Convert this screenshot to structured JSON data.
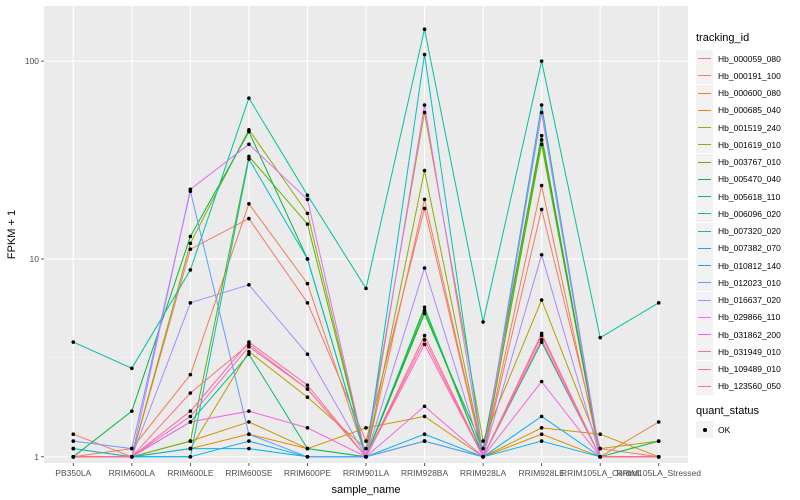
{
  "chart_data": {
    "type": "line",
    "xlabel": "sample_name",
    "ylabel": "FPKM + 1",
    "y_scale": "log10",
    "ylim": [
      0.93,
      190
    ],
    "y_ticks": [
      1,
      10,
      100
    ],
    "y_tick_labels": [
      "1",
      "10",
      "100"
    ],
    "categories": [
      "PB350LA",
      "RRIM600LA",
      "RRIM600LE",
      "RRIM600SE",
      "RRIM600PE",
      "RRIM901LA",
      "RRIM928BA",
      "RRIM928LA",
      "RRIM928LE",
      "RRIM105LA_Control",
      "RRIM105LA_Stressed"
    ],
    "series": [
      {
        "name": "Hb_000059_080",
        "color": "#F8766D",
        "values": [
          1.3,
          1.0,
          11.2,
          16.0,
          6.0,
          1.2,
          18.0,
          1.0,
          17.8,
          1.1,
          1.0
        ]
      },
      {
        "name": "Hb_000191_100",
        "color": "#F07E4E",
        "values": [
          1.0,
          1.1,
          2.6,
          19.0,
          7.5,
          1.0,
          20.0,
          1.0,
          23.5,
          1.0,
          1.5
        ]
      },
      {
        "name": "Hb_000600_080",
        "color": "#E38900",
        "values": [
          1.1,
          1.0,
          1.1,
          1.3,
          1.1,
          1.0,
          1.2,
          1.0,
          1.3,
          1.0,
          1.0
        ]
      },
      {
        "name": "Hb_000685_040",
        "color": "#D39200",
        "values": [
          1.0,
          1.0,
          1.2,
          1.5,
          1.1,
          1.4,
          1.6,
          1.0,
          1.4,
          1.3,
          1.0
        ]
      },
      {
        "name": "Hb_001519_240",
        "color": "#B79F00",
        "values": [
          1.0,
          1.0,
          1.1,
          3.4,
          2.0,
          1.1,
          55.0,
          1.2,
          6.2,
          1.1,
          1.2
        ]
      },
      {
        "name": "Hb_001619_010",
        "color": "#93AA00",
        "values": [
          1.0,
          1.0,
          12.0,
          45.0,
          17.0,
          1.0,
          28.0,
          1.0,
          40.0,
          1.0,
          1.0
        ]
      },
      {
        "name": "Hb_003767_010",
        "color": "#5EB300",
        "values": [
          1.0,
          1.0,
          1.2,
          33.0,
          15.0,
          1.0,
          5.5,
          1.0,
          38.0,
          1.0,
          1.0
        ]
      },
      {
        "name": "Hb_005470_040",
        "color": "#00BA38",
        "values": [
          1.0,
          1.7,
          13.0,
          44.0,
          10.0,
          1.0,
          5.3,
          1.1,
          42.0,
          1.0,
          1.2
        ]
      },
      {
        "name": "Hb_005618_110",
        "color": "#00BF74",
        "values": [
          1.0,
          1.0,
          1.5,
          3.3,
          1.1,
          1.0,
          5.7,
          1.0,
          3.8,
          1.0,
          1.0
        ]
      },
      {
        "name": "Hb_006096_020",
        "color": "#00C19F",
        "values": [
          3.8,
          2.8,
          8.8,
          65.0,
          21.0,
          7.1,
          145.0,
          4.8,
          100.0,
          4.0,
          6.0
        ]
      },
      {
        "name": "Hb_007320_020",
        "color": "#00BFC4",
        "values": [
          1.0,
          1.0,
          1.0,
          32.0,
          10.0,
          1.0,
          108.0,
          1.0,
          60.0,
          1.0,
          1.0
        ]
      },
      {
        "name": "Hb_007382_070",
        "color": "#00B9E3",
        "values": [
          1.1,
          1.0,
          1.1,
          1.1,
          1.0,
          1.0,
          1.2,
          1.0,
          1.2,
          1.0,
          1.0
        ]
      },
      {
        "name": "Hb_010812_140",
        "color": "#00ADFA",
        "values": [
          1.0,
          1.0,
          1.0,
          1.2,
          1.0,
          1.0,
          1.3,
          1.0,
          1.6,
          1.0,
          1.0
        ]
      },
      {
        "name": "Hb_012023_010",
        "color": "#619CFF",
        "values": [
          1.2,
          1.1,
          22.0,
          1.3,
          1.0,
          1.0,
          1.2,
          1.0,
          55.0,
          1.0,
          1.0
        ]
      },
      {
        "name": "Hb_016637_020",
        "color": "#AE87FF",
        "values": [
          1.0,
          1.0,
          6.0,
          7.4,
          3.3,
          1.0,
          9.0,
          1.0,
          10.5,
          1.0,
          1.0
        ]
      },
      {
        "name": "Hb_029866_110",
        "color": "#DB72FB",
        "values": [
          1.0,
          1.0,
          22.5,
          38.0,
          20.0,
          1.0,
          60.0,
          1.0,
          55.0,
          1.0,
          1.0
        ]
      },
      {
        "name": "Hb_031862_200",
        "color": "#F564E3",
        "values": [
          1.0,
          1.0,
          1.5,
          1.7,
          1.4,
          1.0,
          1.8,
          1.0,
          2.4,
          1.0,
          1.0
        ]
      },
      {
        "name": "Hb_031949_010",
        "color": "#FF61C3",
        "values": [
          1.0,
          1.0,
          1.6,
          3.6,
          2.2,
          1.0,
          3.7,
          1.0,
          3.9,
          1.0,
          1.0
        ]
      },
      {
        "name": "Hb_109489_010",
        "color": "#FF67A4",
        "values": [
          1.0,
          1.0,
          1.7,
          3.8,
          2.3,
          1.0,
          3.9,
          1.0,
          4.1,
          1.0,
          1.0
        ]
      },
      {
        "name": "Hb_123560_050",
        "color": "#FC717F",
        "values": [
          1.0,
          1.0,
          2.1,
          3.7,
          2.2,
          1.0,
          4.1,
          1.0,
          4.2,
          1.0,
          1.0
        ]
      }
    ],
    "grid": true,
    "legend": "right",
    "point_legend": {
      "title": "quant_status",
      "items": [
        "OK"
      ]
    },
    "legend_title": "tracking_id"
  }
}
